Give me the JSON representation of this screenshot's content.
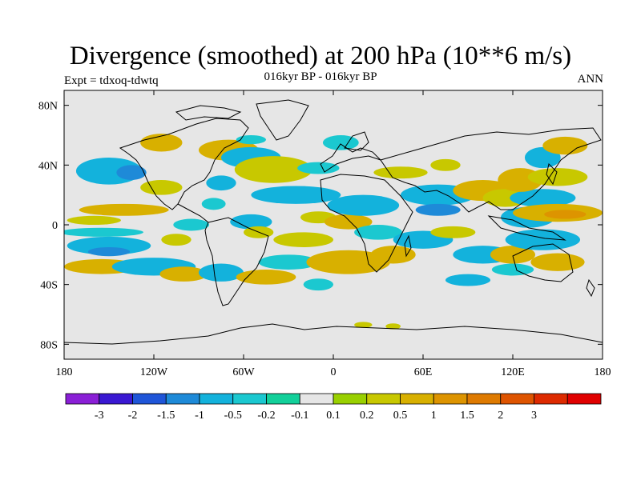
{
  "header": {
    "title": "Divergence (smoothed) at 200 hPa (10**6 m/s)",
    "subtitle": "016kyr BP - 016kyr BP",
    "experiment": "Expt = tdxoq-tdwtq",
    "period": "ANN"
  },
  "chart_data": {
    "type": "heatmap",
    "title": "Divergence (smoothed) at 200 hPa (10**6 m/s)",
    "subtitle": "016kyr BP - 016kyr BP",
    "xlabel": "",
    "ylabel": "",
    "xlim": [
      -180,
      180
    ],
    "ylim": [
      -90,
      90
    ],
    "x_ticks": [
      {
        "value": -180,
        "label": "180"
      },
      {
        "value": -120,
        "label": "120W"
      },
      {
        "value": -60,
        "label": "60W"
      },
      {
        "value": 0,
        "label": "0"
      },
      {
        "value": 60,
        "label": "60E"
      },
      {
        "value": 120,
        "label": "120E"
      },
      {
        "value": 180,
        "label": "180"
      }
    ],
    "y_ticks": [
      {
        "value": 80,
        "label": "80N"
      },
      {
        "value": 40,
        "label": "40N"
      },
      {
        "value": 0,
        "label": "0"
      },
      {
        "value": -40,
        "label": "40S"
      },
      {
        "value": -80,
        "label": "80S"
      }
    ],
    "background_color": "#e6e6e6",
    "colorbar": {
      "colors": [
        "#8a1fd6",
        "#3a18d2",
        "#1f55d8",
        "#1e8ad8",
        "#13b2dc",
        "#1bc8d0",
        "#12d09a",
        "#e6e6e6",
        "#99d000",
        "#c8c800",
        "#d8b000",
        "#dd9400",
        "#de7a00",
        "#de5400",
        "#dd2a00",
        "#e00000"
      ],
      "labels": [
        "-3",
        "-2",
        "-1.5",
        "-1",
        "-0.5",
        "-0.2",
        "-0.1",
        "0.1",
        "0.2",
        "0.5",
        "1",
        "1.5",
        "2",
        "3"
      ]
    },
    "anomaly_regions": [
      {
        "lon": -150,
        "lat": 36,
        "rx": 22,
        "ry": 9,
        "level": "-0.5"
      },
      {
        "lon": -135,
        "lat": 35,
        "rx": 10,
        "ry": 5,
        "level": "-1"
      },
      {
        "lon": -115,
        "lat": 25,
        "rx": 14,
        "ry": 5,
        "level": "0.2"
      },
      {
        "lon": -140,
        "lat": 10,
        "rx": 30,
        "ry": 4,
        "level": "0.5"
      },
      {
        "lon": -160,
        "lat": 3,
        "rx": 18,
        "ry": 3,
        "level": "0.2"
      },
      {
        "lon": -155,
        "lat": -5,
        "rx": 28,
        "ry": 3,
        "level": "-0.2"
      },
      {
        "lon": -150,
        "lat": -14,
        "rx": 28,
        "ry": 6,
        "level": "-0.5"
      },
      {
        "lon": -150,
        "lat": -18,
        "rx": 14,
        "ry": 3,
        "level": "-1"
      },
      {
        "lon": -155,
        "lat": -28,
        "rx": 25,
        "ry": 5,
        "level": "0.5"
      },
      {
        "lon": -120,
        "lat": -28,
        "rx": 28,
        "ry": 6,
        "level": "-0.5"
      },
      {
        "lon": -105,
        "lat": -10,
        "rx": 10,
        "ry": 4,
        "level": "0.2"
      },
      {
        "lon": -100,
        "lat": -33,
        "rx": 16,
        "ry": 5,
        "level": "0.5"
      },
      {
        "lon": -75,
        "lat": -32,
        "rx": 15,
        "ry": 6,
        "level": "-0.5"
      },
      {
        "lon": -115,
        "lat": 55,
        "rx": 14,
        "ry": 6,
        "level": "0.5"
      },
      {
        "lon": -70,
        "lat": 50,
        "rx": 20,
        "ry": 7,
        "level": "0.5"
      },
      {
        "lon": -75,
        "lat": 28,
        "rx": 10,
        "ry": 5,
        "level": "-0.5"
      },
      {
        "lon": -55,
        "lat": 45,
        "rx": 20,
        "ry": 7,
        "level": "-0.5"
      },
      {
        "lon": -80,
        "lat": 14,
        "rx": 8,
        "ry": 4,
        "level": "-0.2"
      },
      {
        "lon": -40,
        "lat": 37,
        "rx": 26,
        "ry": 9,
        "level": "0.2"
      },
      {
        "lon": -25,
        "lat": 20,
        "rx": 30,
        "ry": 6,
        "level": "-0.5"
      },
      {
        "lon": -55,
        "lat": 2,
        "rx": 14,
        "ry": 5,
        "level": "-0.5"
      },
      {
        "lon": -50,
        "lat": -5,
        "rx": 10,
        "ry": 4,
        "level": "0.2"
      },
      {
        "lon": -20,
        "lat": -10,
        "rx": 20,
        "ry": 5,
        "level": "0.2"
      },
      {
        "lon": -30,
        "lat": -25,
        "rx": 20,
        "ry": 5,
        "level": "-0.2"
      },
      {
        "lon": 10,
        "lat": -25,
        "rx": 28,
        "ry": 8,
        "level": "0.5"
      },
      {
        "lon": -10,
        "lat": 5,
        "rx": 12,
        "ry": 4,
        "level": "0.2"
      },
      {
        "lon": 10,
        "lat": 2,
        "rx": 16,
        "ry": 5,
        "level": "0.5"
      },
      {
        "lon": 20,
        "lat": 13,
        "rx": 24,
        "ry": 7,
        "level": "-0.5"
      },
      {
        "lon": 30,
        "lat": -5,
        "rx": 16,
        "ry": 5,
        "level": "-0.2"
      },
      {
        "lon": 40,
        "lat": -20,
        "rx": 15,
        "ry": 6,
        "level": "0.5"
      },
      {
        "lon": 60,
        "lat": -10,
        "rx": 20,
        "ry": 6,
        "level": "-0.5"
      },
      {
        "lon": 80,
        "lat": -5,
        "rx": 15,
        "ry": 4,
        "level": "0.2"
      },
      {
        "lon": 70,
        "lat": 20,
        "rx": 25,
        "ry": 7,
        "level": "-0.5"
      },
      {
        "lon": 70,
        "lat": 10,
        "rx": 15,
        "ry": 4,
        "level": "-1"
      },
      {
        "lon": 100,
        "lat": 23,
        "rx": 20,
        "ry": 7,
        "level": "0.5"
      },
      {
        "lon": 115,
        "lat": 18,
        "rx": 15,
        "ry": 6,
        "level": "0.2"
      },
      {
        "lon": 130,
        "lat": 5,
        "rx": 18,
        "ry": 7,
        "level": "-0.5"
      },
      {
        "lon": 140,
        "lat": 18,
        "rx": 22,
        "ry": 6,
        "level": "-0.5"
      },
      {
        "lon": 150,
        "lat": 8,
        "rx": 30,
        "ry": 6,
        "level": "0.5"
      },
      {
        "lon": 155,
        "lat": 7,
        "rx": 14,
        "ry": 3,
        "level": "1"
      },
      {
        "lon": 125,
        "lat": 30,
        "rx": 15,
        "ry": 8,
        "level": "0.5"
      },
      {
        "lon": 140,
        "lat": 45,
        "rx": 12,
        "ry": 7,
        "level": "-0.5"
      },
      {
        "lon": 150,
        "lat": 32,
        "rx": 20,
        "ry": 6,
        "level": "0.2"
      },
      {
        "lon": 155,
        "lat": 53,
        "rx": 15,
        "ry": 6,
        "level": "0.5"
      },
      {
        "lon": 75,
        "lat": 40,
        "rx": 10,
        "ry": 4,
        "level": "0.2"
      },
      {
        "lon": 100,
        "lat": -20,
        "rx": 20,
        "ry": 6,
        "level": "-0.5"
      },
      {
        "lon": 120,
        "lat": -20,
        "rx": 15,
        "ry": 6,
        "level": "0.5"
      },
      {
        "lon": 140,
        "lat": -10,
        "rx": 25,
        "ry": 7,
        "level": "-0.5"
      },
      {
        "lon": 150,
        "lat": -25,
        "rx": 18,
        "ry": 6,
        "level": "0.5"
      },
      {
        "lon": 90,
        "lat": -37,
        "rx": 15,
        "ry": 4,
        "level": "-0.5"
      },
      {
        "lon": 120,
        "lat": -30,
        "rx": 14,
        "ry": 4,
        "level": "-0.2"
      },
      {
        "lon": 5,
        "lat": 55,
        "rx": 12,
        "ry": 5,
        "level": "-0.2"
      },
      {
        "lon": -55,
        "lat": 57,
        "rx": 10,
        "ry": 3,
        "level": "-0.2"
      },
      {
        "lon": -45,
        "lat": -35,
        "rx": 20,
        "ry": 5,
        "level": "0.5"
      },
      {
        "lon": -95,
        "lat": 0,
        "rx": 12,
        "ry": 4,
        "level": "-0.2"
      },
      {
        "lon": -10,
        "lat": -40,
        "rx": 10,
        "ry": 4,
        "level": "-0.2"
      },
      {
        "lon": 20,
        "lat": -67,
        "rx": 6,
        "ry": 2,
        "level": "0.2"
      },
      {
        "lon": 40,
        "lat": -68,
        "rx": 5,
        "ry": 2,
        "level": "0.2"
      },
      {
        "lon": 45,
        "lat": 35,
        "rx": 18,
        "ry": 4,
        "level": "0.2"
      },
      {
        "lon": -10,
        "lat": 38,
        "rx": 14,
        "ry": 4,
        "level": "-0.2"
      }
    ],
    "grid": false
  }
}
